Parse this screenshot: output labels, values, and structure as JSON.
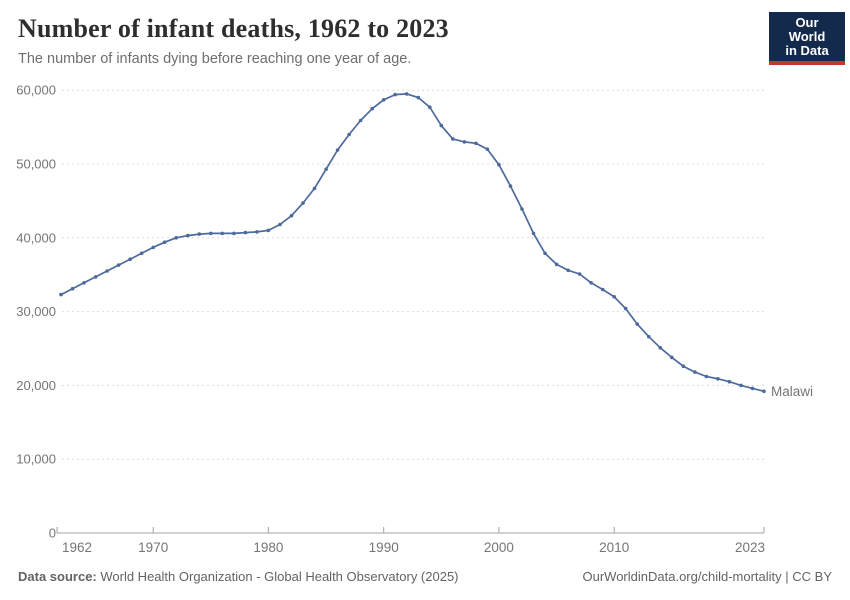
{
  "header": {
    "logo": {
      "line1": "Our World",
      "line2": "in Data",
      "bg_color": "#142a4d",
      "stripe_color": "#c0392b",
      "text_color": "#ffffff"
    }
  },
  "footer": {
    "datasource_label": "Data source:",
    "datasource_text": " World Health Organization - Global Health Observatory (2025)",
    "link_text": "OurWorldinData.org/child-mortality | CC BY"
  },
  "chart_data": {
    "type": "line",
    "title": "Number of infant deaths, 1962 to 2023",
    "subtitle": "The number of infants dying before reaching one year of age.",
    "xlabel": "",
    "ylabel": "",
    "x_range": [
      1962,
      2023
    ],
    "ylim": [
      0,
      62000
    ],
    "grid": "horizontal-dashed",
    "legend_position": "end-of-line-label",
    "colors": {
      "line": "#4c6a9c",
      "gridline": "#dcdcdc",
      "axis": "#a3a3a3",
      "tick_label": "#757575"
    },
    "x_ticks": [
      {
        "v": 1962,
        "label": "1962"
      },
      {
        "v": 1970,
        "label": "1970"
      },
      {
        "v": 1980,
        "label": "1980"
      },
      {
        "v": 1990,
        "label": "1990"
      },
      {
        "v": 2000,
        "label": "2000"
      },
      {
        "v": 2010,
        "label": "2010"
      },
      {
        "v": 2023,
        "label": "2023"
      }
    ],
    "y_ticks": [
      {
        "v": 0,
        "label": "0"
      },
      {
        "v": 10000,
        "label": "10,000"
      },
      {
        "v": 20000,
        "label": "20,000"
      },
      {
        "v": 30000,
        "label": "30,000"
      },
      {
        "v": 40000,
        "label": "40,000"
      },
      {
        "v": 50000,
        "label": "50,000"
      },
      {
        "v": 60000,
        "label": "60,000"
      }
    ],
    "series": [
      {
        "name": "Malawi",
        "color": "#4c6a9c",
        "x": [
          1962,
          1963,
          1964,
          1965,
          1966,
          1967,
          1968,
          1969,
          1970,
          1971,
          1972,
          1973,
          1974,
          1975,
          1976,
          1977,
          1978,
          1979,
          1980,
          1981,
          1982,
          1983,
          1984,
          1985,
          1986,
          1987,
          1988,
          1989,
          1990,
          1991,
          1992,
          1993,
          1994,
          1995,
          1996,
          1997,
          1998,
          1999,
          2000,
          2001,
          2002,
          2003,
          2004,
          2005,
          2006,
          2007,
          2008,
          2009,
          2010,
          2011,
          2012,
          2013,
          2014,
          2015,
          2016,
          2017,
          2018,
          2019,
          2020,
          2021,
          2022,
          2023
        ],
        "values": [
          32300,
          33100,
          33900,
          34700,
          35500,
          36300,
          37100,
          37900,
          38700,
          39400,
          40000,
          40300,
          40500,
          40600,
          40600,
          40600,
          40700,
          40800,
          41000,
          41800,
          43000,
          44700,
          46700,
          49300,
          51900,
          54000,
          55900,
          57500,
          58700,
          59400,
          59500,
          59000,
          57700,
          55200,
          53400,
          53000,
          52800,
          52000,
          49900,
          47000,
          43900,
          40600,
          37900,
          36400,
          35600,
          35100,
          33900,
          33000,
          32000,
          30400,
          28300,
          26600,
          25100,
          23800,
          22600,
          21800,
          21200,
          20900,
          20500,
          20000,
          19600,
          19200
        ]
      }
    ]
  }
}
